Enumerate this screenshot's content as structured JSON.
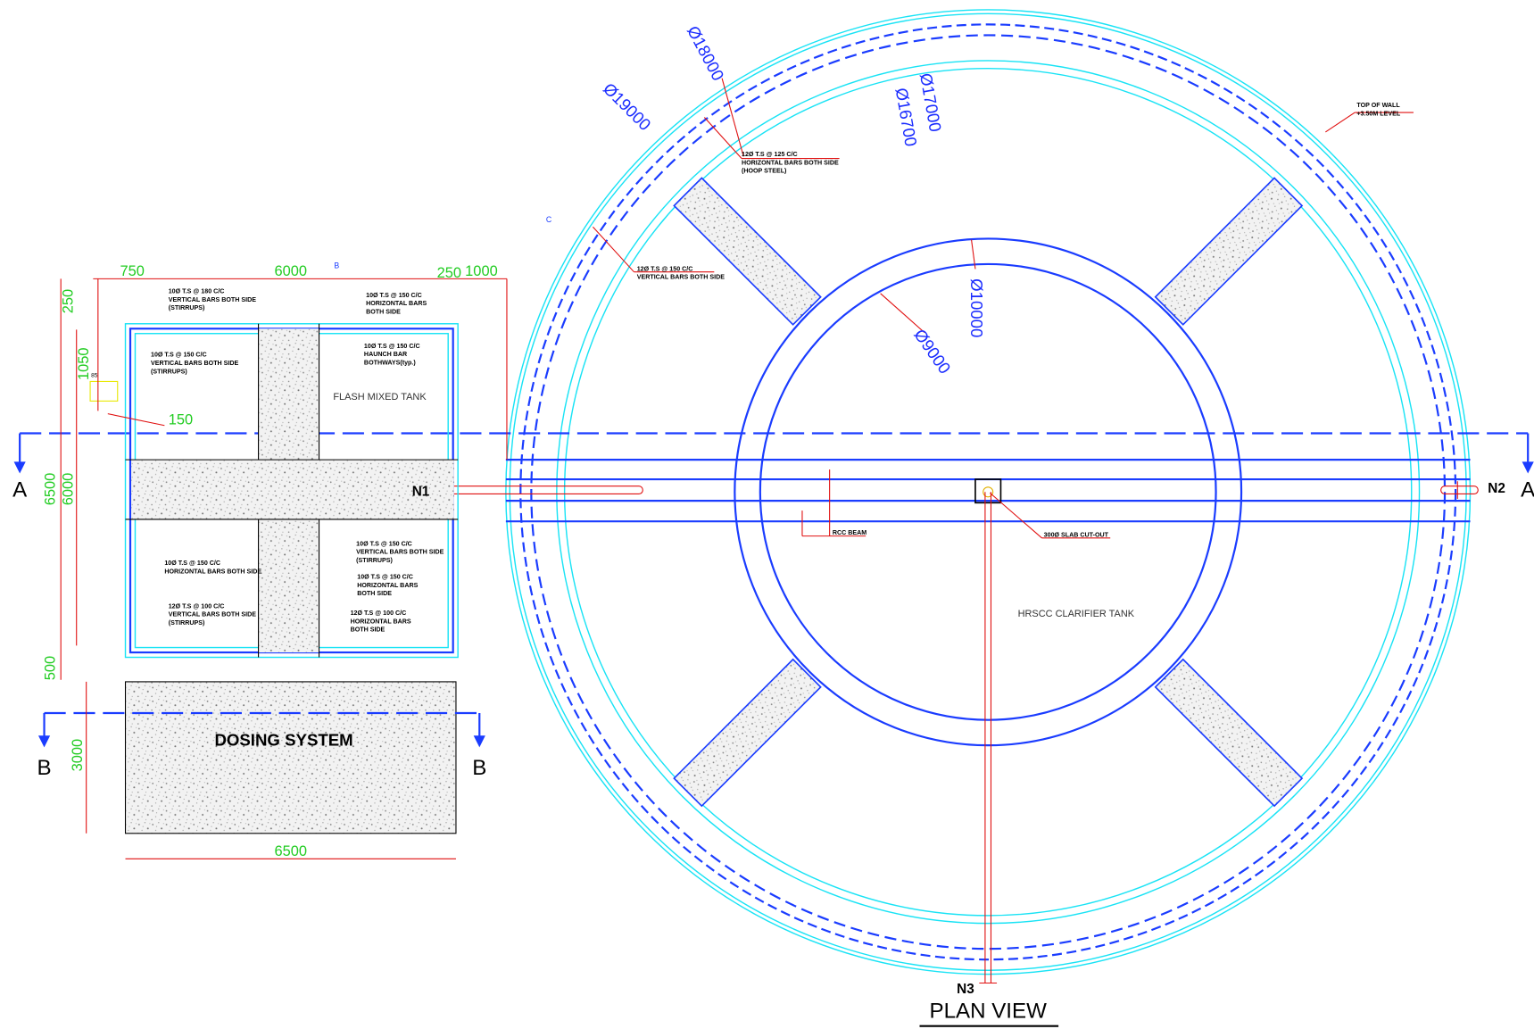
{
  "dimensions": [
    "750",
    "6000",
    "250",
    "1000",
    "250",
    "1050",
    "85",
    "150",
    "6500",
    "6000",
    "500",
    "3000",
    "6500"
  ],
  "diameters": [
    "Ø19000",
    "Ø18000",
    "Ø17000",
    "Ø16700",
    "Ø10000",
    "Ø9000"
  ],
  "labels": {
    "flash_tank": "FLASH MIXED TANK",
    "dosing": "DOSING SYSTEM",
    "clarifier": "HRSCC CLARIFIER TANK",
    "title": "PLAN VIEW"
  },
  "nozzles": [
    "N1",
    "N2",
    "N3"
  ],
  "sections": [
    "A",
    "A",
    "B",
    "B",
    "B",
    "C"
  ],
  "notes": [
    {
      "lines": [
        "TOP OF WALL",
        "+3.50M LEVEL"
      ]
    },
    {
      "lines": [
        "12Ø T.S @ 125 C/C",
        "HORIZONTAL BARS BOTH SIDE",
        "(HOOP STEEL)"
      ]
    },
    {
      "lines": [
        "12Ø T.S @ 150 C/C",
        "VERTICAL BARS BOTH SIDE"
      ]
    },
    {
      "lines": [
        "RCC BEAM"
      ]
    },
    {
      "lines": [
        "300Ø SLAB CUT-OUT"
      ]
    },
    {
      "lines": [
        "10Ø T.S @ 180 C/C",
        "VERTICAL BARS BOTH SIDE",
        "(STIRRUPS)"
      ]
    },
    {
      "lines": [
        "10Ø T.S @ 150 C/C",
        "HORIZONTAL BARS",
        "BOTH SIDE"
      ]
    },
    {
      "lines": [
        "10Ø T.S @ 150 C/C",
        "VERTICAL BARS BOTH SIDE",
        "(STIRRUPS)"
      ]
    },
    {
      "lines": [
        "10Ø T.S @ 150 C/C",
        "HAUNCH BAR",
        "BOTHWAYS(typ.)"
      ]
    },
    {
      "lines": [
        "10Ø T.S @ 150 C/C",
        "HORIZONTAL BARS BOTH SIDE"
      ]
    },
    {
      "lines": [
        "10Ø T.S @ 150 C/C",
        "VERTICAL BARS BOTH SIDE",
        "(STIRRUPS)"
      ]
    },
    {
      "lines": [
        "10Ø T.S @ 150 C/C",
        "HORIZONTAL BARS",
        "BOTH SIDE"
      ]
    },
    {
      "lines": [
        "12Ø T.S @ 100 C/C",
        "VERTICAL BARS BOTH SIDE",
        "(STIRRUPS)"
      ]
    },
    {
      "lines": [
        "12Ø T.S @ 100 C/C",
        "HORIZONTAL BARS",
        "BOTH SIDE"
      ]
    }
  ]
}
